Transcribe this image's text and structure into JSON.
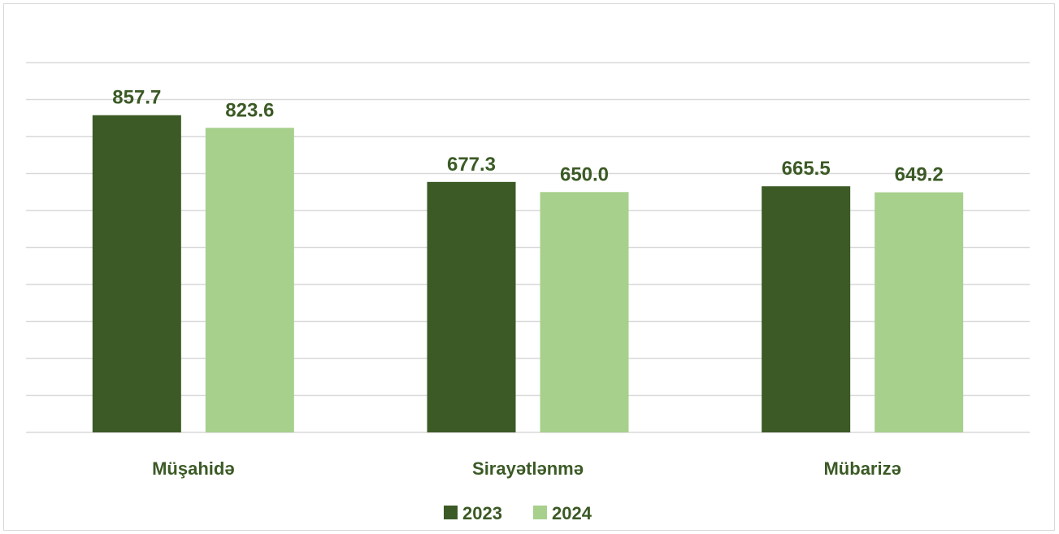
{
  "chart_data": {
    "type": "bar",
    "categories": [
      "Müşahidə",
      "Sirayətlənmə",
      "Mübarizə"
    ],
    "series": [
      {
        "name": "2023",
        "values": [
          857.7,
          677.3,
          665.5
        ],
        "color": "#3b5a25"
      },
      {
        "name": "2024",
        "values": [
          823.6,
          650.0,
          649.2
        ],
        "color": "#a8d08d"
      }
    ],
    "value_labels": [
      [
        "857.7",
        "677.3",
        "665.5"
      ],
      [
        "823.6",
        "650.0",
        "649.2"
      ]
    ],
    "label_color": "#3b5a25",
    "ylim": [
      0,
      1000
    ],
    "grid": true,
    "legend_position": "bottom-center"
  }
}
